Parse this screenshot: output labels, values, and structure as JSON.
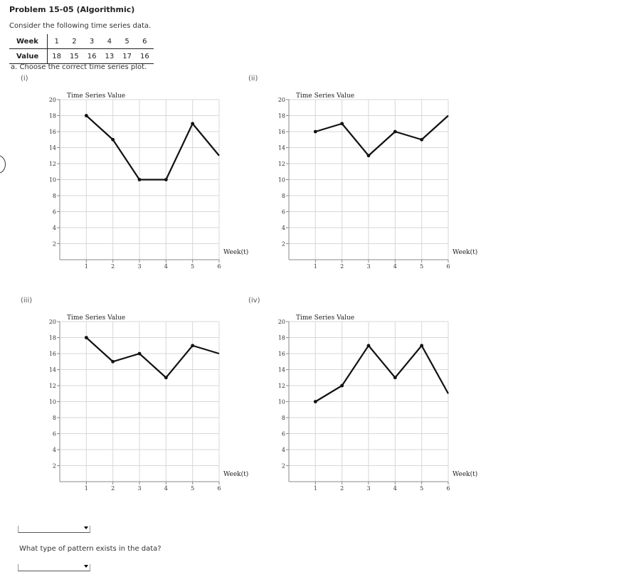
{
  "problem_title": "Problem 15-05 (Algorithmic)",
  "intro": "Consider the following time series data.",
  "table": {
    "week_label": "Week",
    "value_label": "Value",
    "weeks": [
      "1",
      "2",
      "3",
      "4",
      "5",
      "6"
    ],
    "values": [
      "18",
      "15",
      "16",
      "13",
      "17",
      "16"
    ]
  },
  "question_a": "a. Choose the correct time series plot.",
  "question_b": "What type of pattern exists in the data?",
  "options": [
    "(i)",
    "(ii)",
    "(iii)",
    "(iv)"
  ],
  "chart_data": [
    {
      "type": "line",
      "label": "(i)",
      "title": "Time Series Value",
      "xlabel": "Week(t)",
      "x": [
        1,
        2,
        3,
        4,
        5,
        6
      ],
      "y": [
        18,
        15,
        10,
        10,
        17,
        13
      ],
      "xlim": [
        0,
        6
      ],
      "ylim": [
        0,
        20
      ],
      "yticks": [
        2,
        4,
        6,
        8,
        10,
        12,
        14,
        16,
        18,
        20
      ],
      "grid": true
    },
    {
      "type": "line",
      "label": "(ii)",
      "title": "Time Series Value",
      "xlabel": "Week(t)",
      "x": [
        1,
        2,
        3,
        4,
        5,
        6
      ],
      "y": [
        16,
        17,
        13,
        16,
        15,
        18
      ],
      "xlim": [
        0,
        6
      ],
      "ylim": [
        0,
        20
      ],
      "yticks": [
        2,
        4,
        6,
        8,
        10,
        12,
        14,
        16,
        18,
        20
      ],
      "grid": true
    },
    {
      "type": "line",
      "label": "(iii)",
      "title": "Time Series Value",
      "xlabel": "Week(t)",
      "x": [
        1,
        2,
        3,
        4,
        5,
        6
      ],
      "y": [
        18,
        15,
        16,
        13,
        17,
        16
      ],
      "xlim": [
        0,
        6
      ],
      "ylim": [
        0,
        20
      ],
      "yticks": [
        2,
        4,
        6,
        8,
        10,
        12,
        14,
        16,
        18,
        20
      ],
      "grid": true
    },
    {
      "type": "line",
      "label": "(iv)",
      "title": "Time Series Value",
      "xlabel": "Week(t)",
      "x": [
        1,
        2,
        3,
        4,
        5,
        6
      ],
      "y": [
        10,
        12,
        17,
        13,
        17,
        11
      ],
      "xlim": [
        0,
        6
      ],
      "ylim": [
        0,
        20
      ],
      "yticks": [
        2,
        4,
        6,
        8,
        10,
        12,
        14,
        16,
        18,
        20
      ],
      "grid": true
    }
  ]
}
